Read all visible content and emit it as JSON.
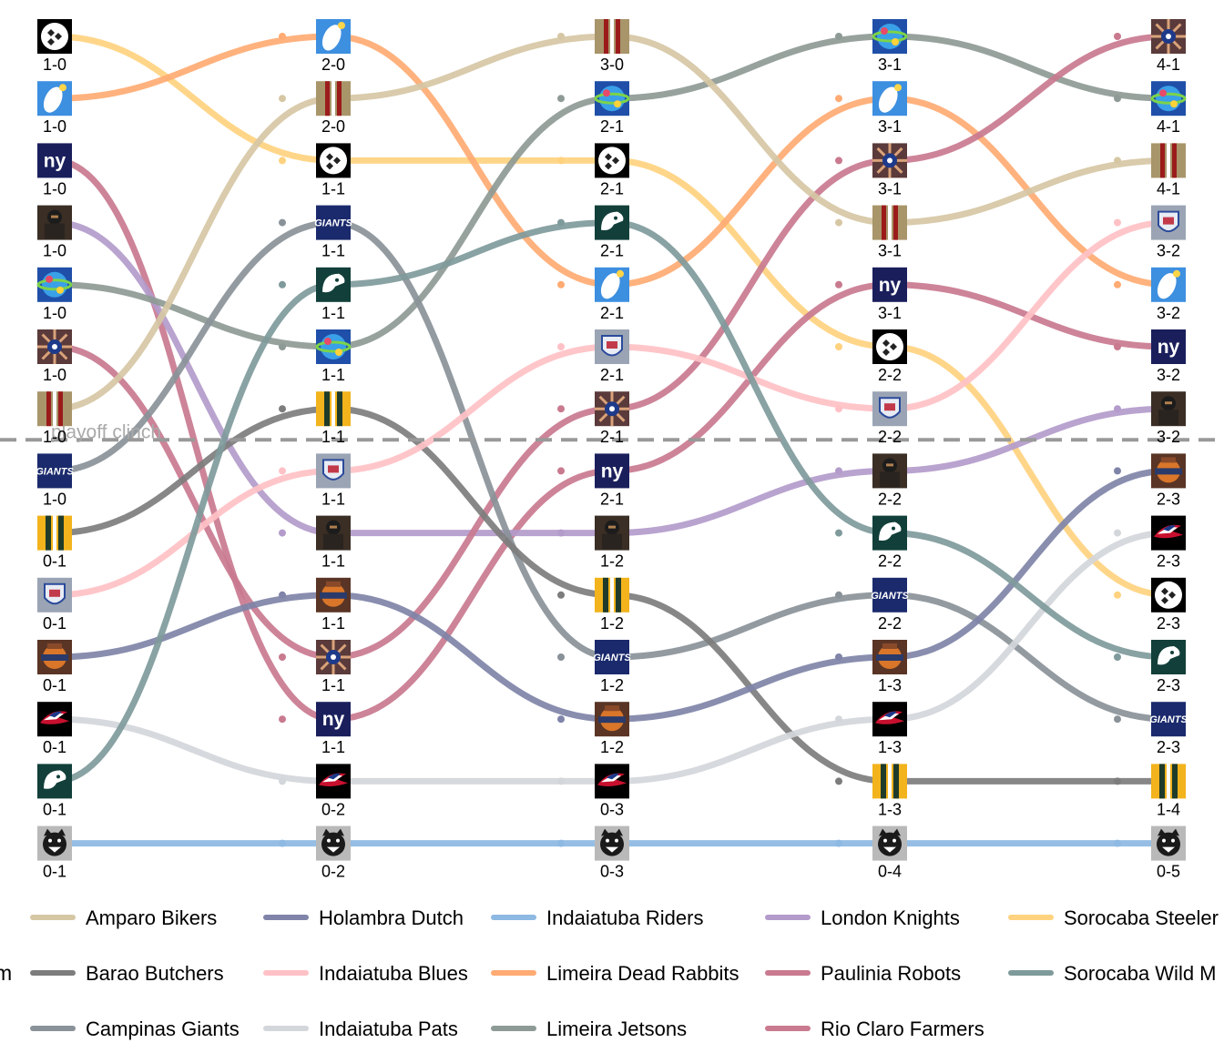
{
  "chart_data": {
    "type": "line",
    "subtype": "bump-chart",
    "title": "",
    "xlabel": "",
    "ylabel": "",
    "rounds": 5,
    "grid": false,
    "legend_position": "bottom",
    "legend_title_fragment": "m",
    "playoff_line": {
      "label": "playoff clinch",
      "after_rank": 7.5,
      "style": "dashed",
      "color": "#999999"
    },
    "series": [
      {
        "name": "Sorocaba Steelers",
        "color": "#FFD27F",
        "icon": "pittsburgh-steelers-logo",
        "ranks": [
          1,
          3,
          3,
          6,
          10
        ],
        "records": [
          "1-0",
          "1-1",
          "2-1",
          "2-2",
          "2-3"
        ]
      },
      {
        "name": "Limeira Dead Rabbits",
        "color": "#FFAB73",
        "icon": "white-feather-logo",
        "ranks": [
          2,
          1,
          5,
          2,
          5
        ],
        "records": [
          "1-0",
          "2-0",
          "2-1",
          "3-1",
          "3-2"
        ]
      },
      {
        "name": "Rio Claro Farmers",
        "color": "#C97A8F",
        "icon": "ny-giants-logo",
        "ranks": [
          3,
          12,
          8,
          5,
          6
        ],
        "records": [
          "1-0",
          "1-1",
          "2-1",
          "3-1",
          "3-2"
        ]
      },
      {
        "name": "London Knights",
        "color": "#B39BCB",
        "icon": "knight-warrior-logo",
        "ranks": [
          4,
          9,
          9,
          8,
          7
        ],
        "records": [
          "1-0",
          "1-1",
          "1-2",
          "2-2",
          "3-2"
        ]
      },
      {
        "name": "Limeira Jetsons",
        "color": "#8E9A95",
        "icon": "jetsons-globe-logo",
        "ranks": [
          5,
          6,
          2,
          1,
          2
        ],
        "records": [
          "1-0",
          "1-1",
          "2-1",
          "3-1",
          "4-1"
        ]
      },
      {
        "name": "Paulinia Robots",
        "color": "#C97A8F",
        "icon": "robot-burst-logo",
        "ranks": [
          6,
          11,
          7,
          3,
          1
        ],
        "records": [
          "1-0",
          "1-1",
          "2-1",
          "3-1",
          "4-1"
        ]
      },
      {
        "name": "Amparo Bikers",
        "color": "#D6C7A4",
        "icon": "maroon-gold-stripes-logo",
        "ranks": [
          7,
          2,
          1,
          4,
          3
        ],
        "records": [
          "1-0",
          "2-0",
          "3-0",
          "3-1",
          "4-1"
        ]
      },
      {
        "name": "Campinas Giants",
        "color": "#8A9299",
        "icon": "giants-script-logo",
        "ranks": [
          8,
          4,
          11,
          10,
          12
        ],
        "records": [
          "1-0",
          "1-1",
          "1-2",
          "2-2",
          "2-3"
        ]
      },
      {
        "name": "Barao Butchers",
        "color": "#7D7D7D",
        "icon": "green-gold-stripes-logo",
        "ranks": [
          9,
          7,
          10,
          13,
          13
        ],
        "records": [
          "0-1",
          "1-1",
          "1-2",
          "1-3",
          "1-4"
        ]
      },
      {
        "name": "Indaiatuba Blues",
        "color": "#FFC1C6",
        "icon": "blue-shield-logo",
        "ranks": [
          10,
          8,
          6,
          7,
          4
        ],
        "records": [
          "0-1",
          "1-1",
          "2-1",
          "2-2",
          "3-2"
        ]
      },
      {
        "name": "Holambra Dutch",
        "color": "#7F84A8",
        "icon": "holambra-dutch-logo",
        "ranks": [
          11,
          10,
          12,
          11,
          8
        ],
        "records": [
          "0-1",
          "1-1",
          "1-2",
          "1-3",
          "2-3"
        ]
      },
      {
        "name": "Indaiatuba Pats",
        "color": "#D3D6DA",
        "icon": "patriots-logo",
        "ranks": [
          12,
          13,
          13,
          12,
          9
        ],
        "records": [
          "0-1",
          "0-2",
          "0-3",
          "1-3",
          "2-3"
        ]
      },
      {
        "name": "Sorocaba Wild Mustangs",
        "color": "#7F9A9B",
        "icon": "eagle-head-logo",
        "ranks": [
          13,
          5,
          4,
          9,
          11
        ],
        "records": [
          "0-1",
          "1-1",
          "2-1",
          "2-2",
          "2-3"
        ]
      },
      {
        "name": "Indaiatuba Riders",
        "color": "#8DB9E3",
        "icon": "panther-head-logo",
        "ranks": [
          14,
          14,
          14,
          14,
          14
        ],
        "records": [
          "0-1",
          "0-2",
          "0-3",
          "0-4",
          "0-5"
        ]
      }
    ],
    "legend_rows": [
      [
        "Amparo Bikers",
        "Holambra Dutch",
        "Indaiatuba Riders",
        "London Knights",
        "Sorocaba Steeler"
      ],
      [
        "Barao Butchers",
        "Indaiatuba Blues",
        "Limeira Dead Rabbits",
        "Paulinia Robots",
        "Sorocaba Wild M"
      ],
      [
        "Campinas Giants",
        "Indaiatuba Pats",
        "Limeira Jetsons",
        "Rio Claro Farmers",
        ""
      ]
    ],
    "legend_colors": [
      [
        "#D6C7A4",
        "#7F84A8",
        "#8DB9E3",
        "#B39BCB",
        "#FFD27F"
      ],
      [
        "#7D7D7D",
        "#FFC1C6",
        "#FFAB73",
        "#C97A8F",
        "#7F9A9B"
      ],
      [
        "#8A9299",
        "#D3D6DA",
        "#8E9A95",
        "#C97A8F",
        ""
      ]
    ]
  }
}
